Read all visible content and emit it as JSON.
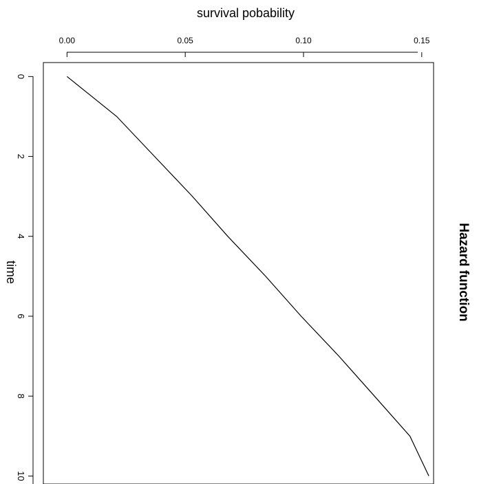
{
  "chart_data": {
    "type": "line",
    "title": "Hazard function",
    "xlabel": "survival pobability",
    "ylabel": "time",
    "xlim": [
      -0.01,
      0.155
    ],
    "ylim": [
      -0.35,
      10.2
    ],
    "x_ticks": [
      0.0,
      0.05,
      0.1,
      0.15
    ],
    "x_tick_labels": [
      "0.00",
      "0.05",
      "0.10",
      "0.15"
    ],
    "y_ticks": [
      0,
      2,
      4,
      6,
      8,
      10
    ],
    "y_tick_labels": [
      "0",
      "2",
      "4",
      "6",
      "8",
      "10"
    ],
    "grid": false,
    "legend": "none",
    "series": [
      {
        "color": "#000000",
        "points": [
          {
            "x": 0.0,
            "y": 0
          },
          {
            "x": 0.021,
            "y": 1
          },
          {
            "x": 0.037,
            "y": 2
          },
          {
            "x": 0.053,
            "y": 3
          },
          {
            "x": 0.068,
            "y": 4
          },
          {
            "x": 0.084,
            "y": 5
          },
          {
            "x": 0.099,
            "y": 6
          },
          {
            "x": 0.115,
            "y": 7
          },
          {
            "x": 0.13,
            "y": 8
          },
          {
            "x": 0.145,
            "y": 9
          },
          {
            "x": 0.153,
            "y": 10
          }
        ]
      }
    ]
  }
}
